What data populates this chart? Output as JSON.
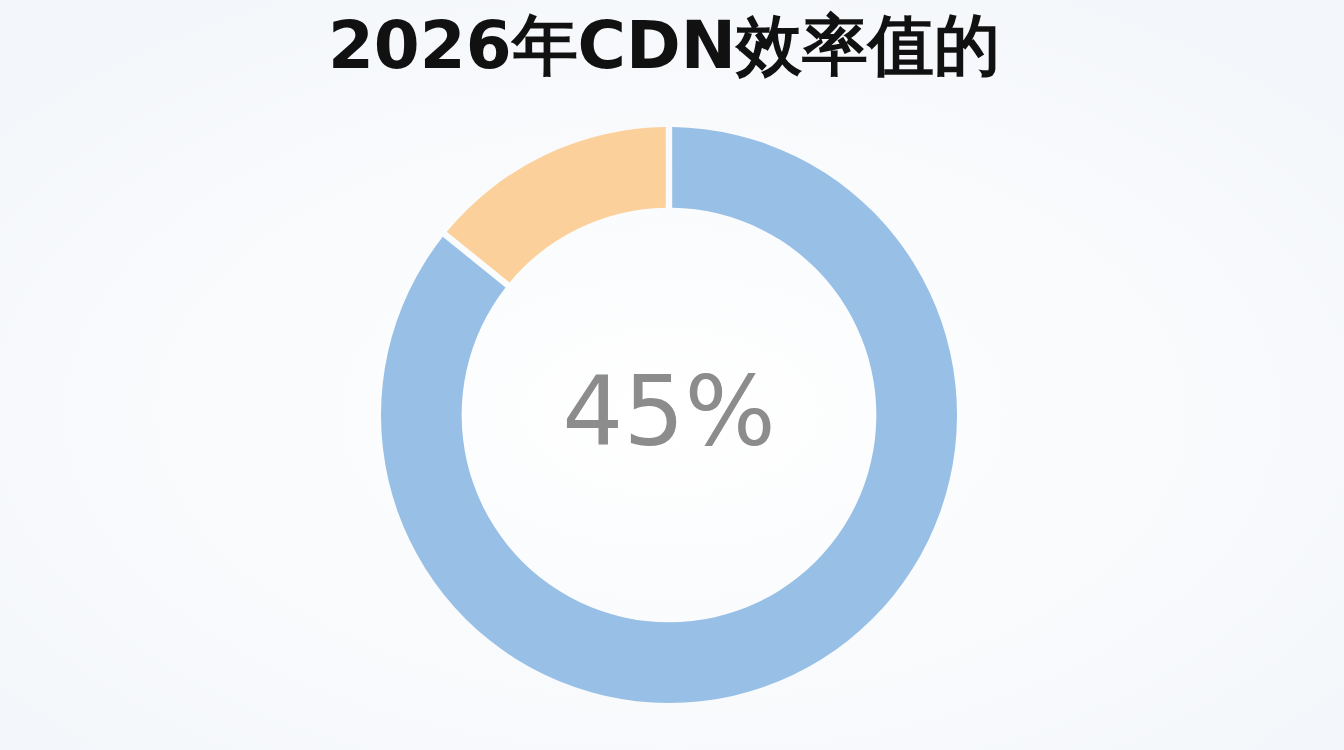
{
  "chart_data": {
    "type": "donut",
    "title": "2026年CDN效率值的",
    "categories": [
      null,
      null
    ],
    "values": [
      86,
      14
    ],
    "colors": [
      "#98bfe6",
      "#fcd09b"
    ],
    "annotations": [
      "45%"
    ]
  }
}
